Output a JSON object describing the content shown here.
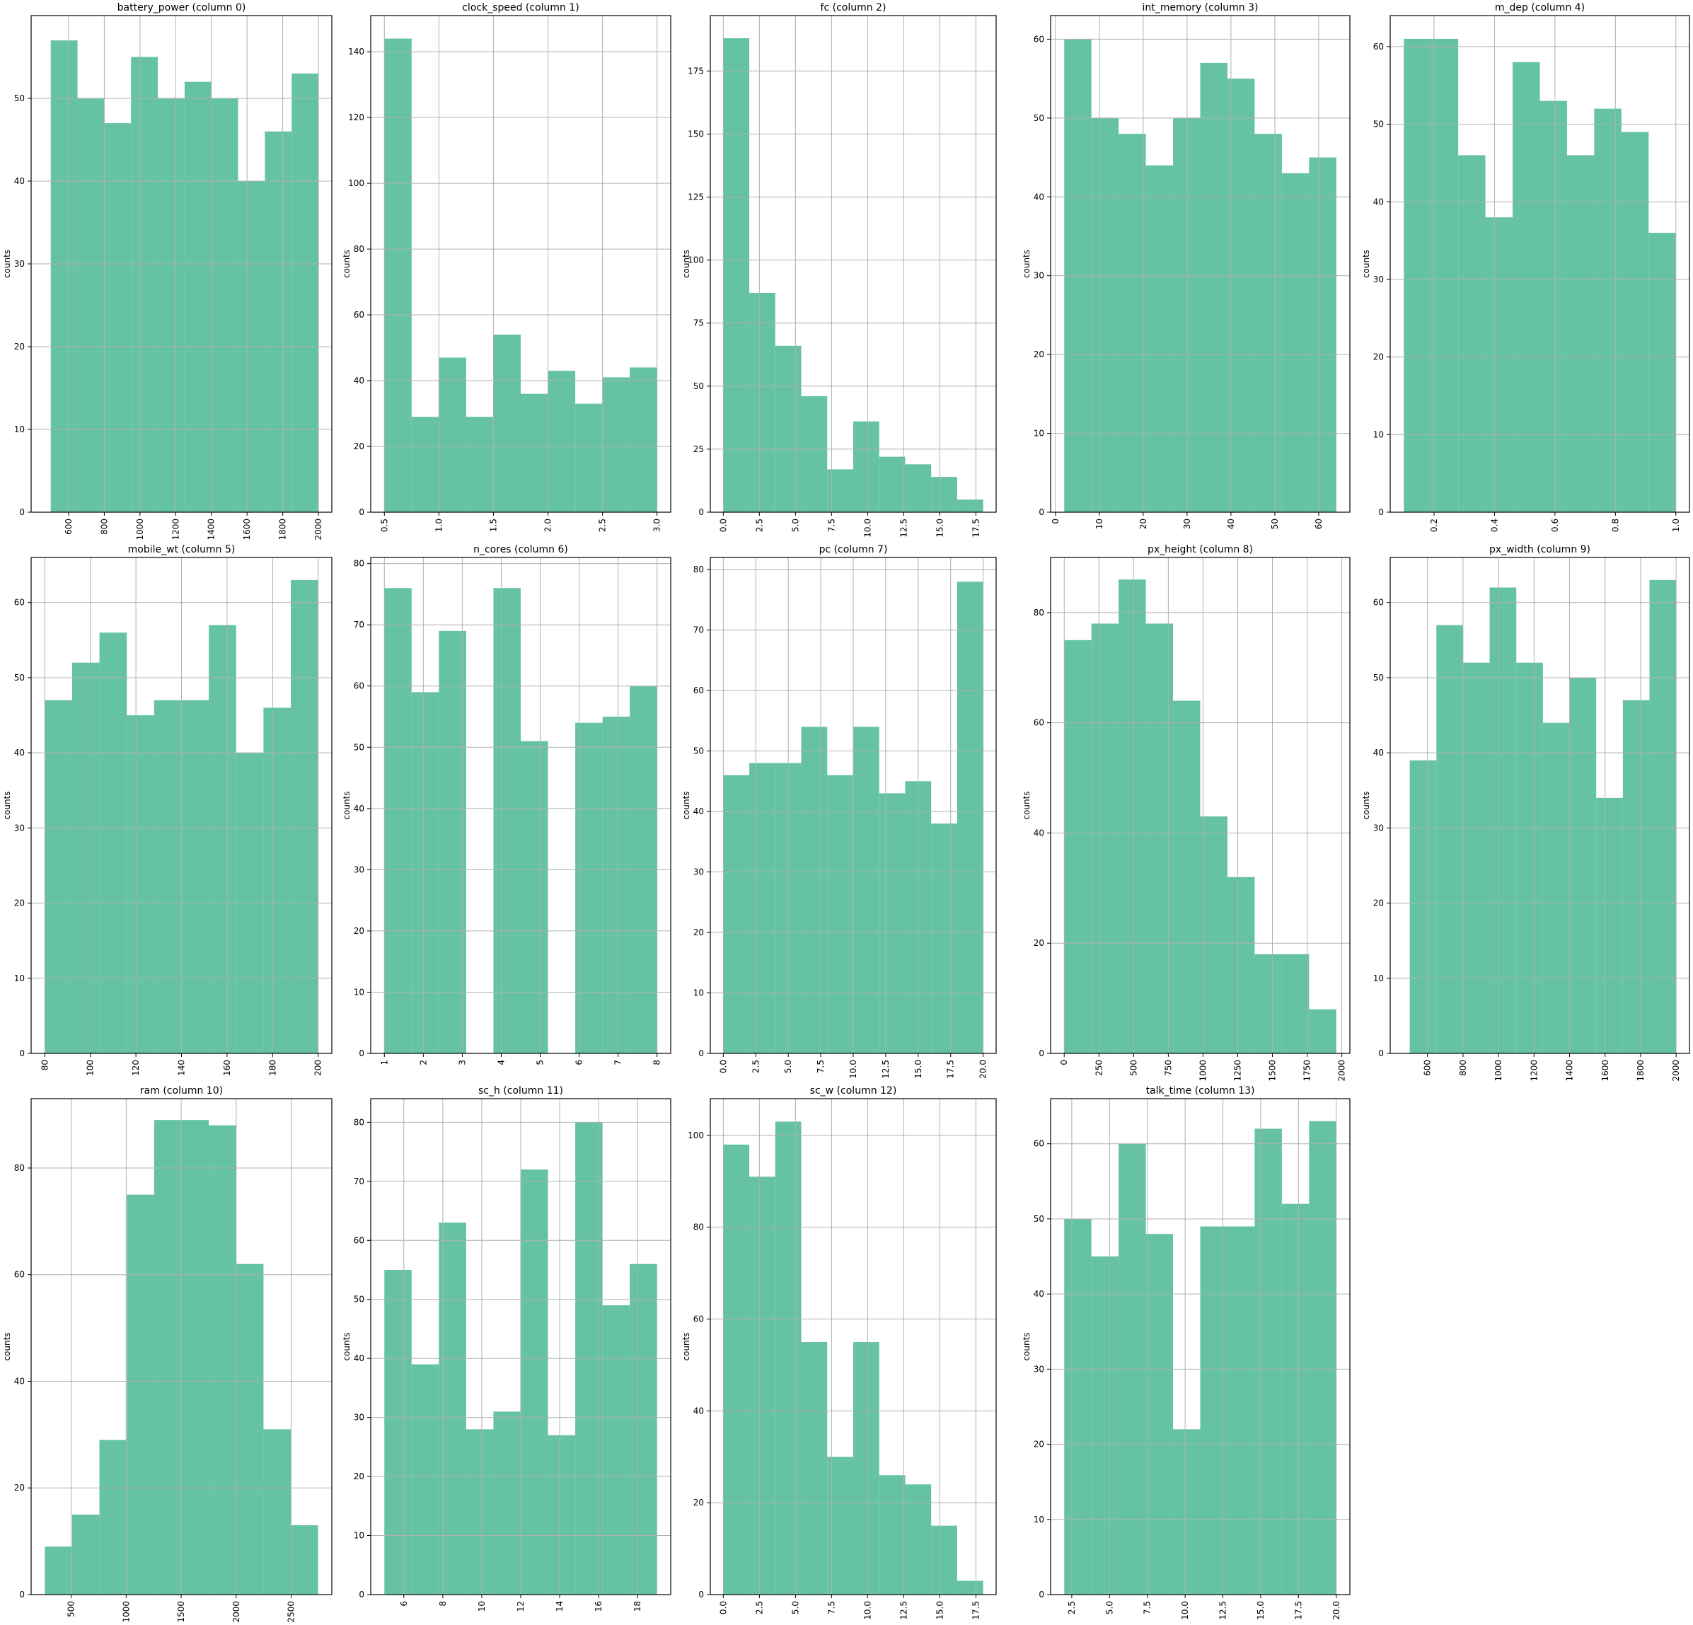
{
  "style": {
    "bar_color": "#66c2a5",
    "grid_color": "#b0b0b0",
    "axis_color": "#000000"
  },
  "chart_data": [
    {
      "type": "bar",
      "title": "battery_power (column 0)",
      "ylabel": "counts",
      "xlabel": "",
      "bin_edges": [
        500,
        650,
        800,
        950,
        1100,
        1250,
        1400,
        1550,
        1700,
        1850,
        2000
      ],
      "values": [
        57,
        50,
        47,
        55,
        50,
        52,
        50,
        40,
        46,
        53
      ],
      "xlim": [
        390,
        2075
      ],
      "ylim": [
        0,
        60
      ],
      "xticks": [
        600,
        800,
        1000,
        1200,
        1400,
        1600,
        1800,
        2000
      ],
      "xtick_rotation": 90,
      "yticks": [
        0,
        10,
        20,
        30,
        40,
        50
      ],
      "grid": true
    },
    {
      "type": "bar",
      "title": "clock_speed (column 1)",
      "ylabel": "counts",
      "xlabel": "",
      "bin_edges": [
        0.5,
        0.75,
        1.0,
        1.25,
        1.5,
        1.75,
        2.0,
        2.25,
        2.5,
        2.75,
        3.0
      ],
      "values": [
        144,
        29,
        47,
        29,
        54,
        36,
        43,
        33,
        41,
        44
      ],
      "xlim": [
        0.375,
        3.125
      ],
      "ylim": [
        0,
        151
      ],
      "xticks": [
        0.5,
        1.0,
        1.5,
        2.0,
        2.5,
        3.0
      ],
      "xtick_rotation": 90,
      "yticks": [
        0,
        20,
        40,
        60,
        80,
        100,
        120,
        140
      ],
      "grid": true
    },
    {
      "type": "bar",
      "title": "fc (column 2)",
      "ylabel": "counts",
      "xlabel": "",
      "bin_edges": [
        0,
        1.8,
        3.6,
        5.4,
        7.2,
        9,
        10.8,
        12.6,
        14.4,
        16.2,
        18
      ],
      "values": [
        188,
        87,
        66,
        46,
        17,
        36,
        22,
        19,
        14,
        5
      ],
      "xlim": [
        -0.9,
        18.9
      ],
      "ylim": [
        0,
        197
      ],
      "xticks": [
        0.0,
        2.5,
        5.0,
        7.5,
        10.0,
        12.5,
        15.0,
        17.5
      ],
      "xtick_rotation": 90,
      "yticks": [
        0,
        25,
        50,
        75,
        100,
        125,
        150,
        175
      ],
      "grid": true
    },
    {
      "type": "bar",
      "title": "int_memory (column 3)",
      "ylabel": "counts",
      "xlabel": "",
      "bin_edges": [
        2,
        8.2,
        14.4,
        20.6,
        26.8,
        33,
        39.2,
        45.4,
        51.6,
        57.8,
        64
      ],
      "values": [
        60,
        50,
        48,
        44,
        50,
        57,
        55,
        48,
        43,
        45
      ],
      "xlim": [
        -1.1,
        67.1
      ],
      "ylim": [
        0,
        63
      ],
      "xticks": [
        0,
        10,
        20,
        30,
        40,
        50,
        60
      ],
      "xtick_rotation": 90,
      "yticks": [
        0,
        10,
        20,
        30,
        40,
        50,
        60
      ],
      "grid": true
    },
    {
      "type": "bar",
      "title": "m_dep (column 4)",
      "ylabel": "counts",
      "xlabel": "",
      "bin_edges": [
        0.1,
        0.19,
        0.28,
        0.37,
        0.46,
        0.55,
        0.64,
        0.73,
        0.82,
        0.91,
        1.0
      ],
      "values": [
        61,
        61,
        46,
        38,
        58,
        53,
        46,
        52,
        49,
        36
      ],
      "xlim": [
        0.055,
        1.045
      ],
      "ylim": [
        0,
        64
      ],
      "xticks": [
        0.2,
        0.4,
        0.6,
        0.8,
        1.0
      ],
      "xtick_rotation": 90,
      "yticks": [
        0,
        10,
        20,
        30,
        40,
        50,
        60
      ],
      "grid": true
    },
    {
      "type": "bar",
      "title": "mobile_wt (column 5)",
      "ylabel": "counts",
      "xlabel": "",
      "bin_edges": [
        80,
        92,
        104,
        116,
        128,
        140,
        152,
        164,
        176,
        188,
        200
      ],
      "values": [
        47,
        52,
        56,
        45,
        47,
        47,
        57,
        40,
        46,
        63
      ],
      "xlim": [
        74,
        206
      ],
      "ylim": [
        0,
        66
      ],
      "xticks": [
        80,
        100,
        120,
        140,
        160,
        180,
        200
      ],
      "xtick_rotation": 90,
      "yticks": [
        0,
        10,
        20,
        30,
        40,
        50,
        60
      ],
      "grid": true
    },
    {
      "type": "bar",
      "title": "n_cores (column 6)",
      "ylabel": "counts",
      "xlabel": "",
      "bin_edges": [
        1,
        1.7,
        2.4,
        3.1,
        3.8,
        4.5,
        5.2,
        5.9,
        6.6,
        7.3,
        8
      ],
      "values": [
        76,
        59,
        69,
        0,
        76,
        51,
        0,
        54,
        55,
        60
      ],
      "xlim": [
        0.65,
        8.35
      ],
      "ylim": [
        0,
        81
      ],
      "xticks": [
        1,
        2,
        3,
        4,
        5,
        6,
        7,
        8
      ],
      "xtick_rotation": 90,
      "yticks": [
        0,
        10,
        20,
        30,
        40,
        50,
        60,
        70,
        80
      ],
      "grid": true
    },
    {
      "type": "bar",
      "title": "pc (column 7)",
      "ylabel": "counts",
      "xlabel": "",
      "bin_edges": [
        0,
        2,
        4,
        6,
        8,
        10,
        12,
        14,
        16,
        18,
        20
      ],
      "values": [
        46,
        48,
        48,
        54,
        46,
        54,
        43,
        45,
        38,
        78
      ],
      "xlim": [
        -1,
        21
      ],
      "ylim": [
        0,
        82
      ],
      "xticks": [
        0.0,
        2.5,
        5.0,
        7.5,
        10.0,
        12.5,
        15.0,
        17.5,
        20.0
      ],
      "xtick_rotation": 90,
      "yticks": [
        0,
        10,
        20,
        30,
        40,
        50,
        60,
        70,
        80
      ],
      "grid": true
    },
    {
      "type": "bar",
      "title": "px_height (column 8)",
      "ylabel": "counts",
      "xlabel": "",
      "bin_edges": [
        0,
        196,
        392,
        588,
        784,
        980,
        1176,
        1372,
        1568,
        1764,
        1960
      ],
      "values": [
        75,
        78,
        86,
        78,
        64,
        43,
        32,
        18,
        18,
        8
      ],
      "xlim": [
        -98,
        2058
      ],
      "ylim": [
        0,
        90
      ],
      "xticks": [
        0,
        250,
        500,
        750,
        1000,
        1250,
        1500,
        1750,
        2000
      ],
      "xtick_rotation": 90,
      "yticks": [
        0,
        20,
        40,
        60,
        80
      ],
      "grid": true
    },
    {
      "type": "bar",
      "title": "px_width (column 9)",
      "ylabel": "counts",
      "xlabel": "",
      "bin_edges": [
        500,
        650,
        800,
        950,
        1100,
        1250,
        1400,
        1550,
        1700,
        1850,
        2000
      ],
      "values": [
        39,
        57,
        52,
        62,
        52,
        44,
        50,
        34,
        47,
        63
      ],
      "xlim": [
        390,
        2075
      ],
      "ylim": [
        0,
        66
      ],
      "xticks": [
        600,
        800,
        1000,
        1200,
        1400,
        1600,
        1800,
        2000
      ],
      "xtick_rotation": 90,
      "yticks": [
        0,
        10,
        20,
        30,
        40,
        50,
        60
      ],
      "grid": true
    },
    {
      "type": "bar",
      "title": "ram (column 10)",
      "ylabel": "counts",
      "xlabel": "",
      "bin_edges": [
        260,
        508.5,
        757,
        1005.5,
        1254,
        1502.5,
        1751,
        1999.5,
        2248,
        2496.5,
        2745
      ],
      "values": [
        9,
        15,
        29,
        75,
        89,
        89,
        88,
        62,
        31,
        13
      ],
      "xlim": [
        136,
        2869
      ],
      "ylim": [
        0,
        93
      ],
      "xticks": [
        500,
        1000,
        1500,
        2000,
        2500
      ],
      "xtick_rotation": 90,
      "yticks": [
        0,
        20,
        40,
        60,
        80
      ],
      "grid": true
    },
    {
      "type": "bar",
      "title": "sc_h (column 11)",
      "ylabel": "counts",
      "xlabel": "",
      "bin_edges": [
        5,
        6.4,
        7.8,
        9.2,
        10.6,
        12,
        13.4,
        14.8,
        16.2,
        17.6,
        19
      ],
      "values": [
        55,
        39,
        63,
        28,
        31,
        72,
        27,
        80,
        49,
        56
      ],
      "xlim": [
        4.3,
        19.7
      ],
      "ylim": [
        0,
        84
      ],
      "xticks": [
        6,
        8,
        10,
        12,
        14,
        16,
        18
      ],
      "xtick_rotation": 90,
      "yticks": [
        0,
        10,
        20,
        30,
        40,
        50,
        60,
        70,
        80
      ],
      "grid": true
    },
    {
      "type": "bar",
      "title": "sc_w (column 12)",
      "ylabel": "counts",
      "xlabel": "",
      "bin_edges": [
        0,
        1.8,
        3.6,
        5.4,
        7.2,
        9,
        10.8,
        12.6,
        14.4,
        16.2,
        18
      ],
      "values": [
        98,
        91,
        103,
        55,
        30,
        55,
        26,
        24,
        15,
        3
      ],
      "xlim": [
        -0.9,
        18.9
      ],
      "ylim": [
        0,
        108
      ],
      "xticks": [
        0.0,
        2.5,
        5.0,
        7.5,
        10.0,
        12.5,
        15.0,
        17.5
      ],
      "xtick_rotation": 90,
      "yticks": [
        0,
        20,
        40,
        60,
        80,
        100
      ],
      "grid": true
    },
    {
      "type": "bar",
      "title": "talk_time (column 13)",
      "ylabel": "counts",
      "xlabel": "",
      "bin_edges": [
        2,
        3.8,
        5.6,
        7.4,
        9.2,
        11,
        12.8,
        14.6,
        16.4,
        18.2,
        20
      ],
      "values": [
        50,
        45,
        60,
        48,
        22,
        49,
        49,
        62,
        52,
        63
      ],
      "xlim": [
        1.1,
        20.9
      ],
      "ylim": [
        0,
        66
      ],
      "xticks": [
        2.5,
        5.0,
        7.5,
        10.0,
        12.5,
        15.0,
        17.5,
        20.0
      ],
      "xtick_rotation": 90,
      "yticks": [
        0,
        10,
        20,
        30,
        40,
        50,
        60
      ],
      "grid": true
    }
  ]
}
